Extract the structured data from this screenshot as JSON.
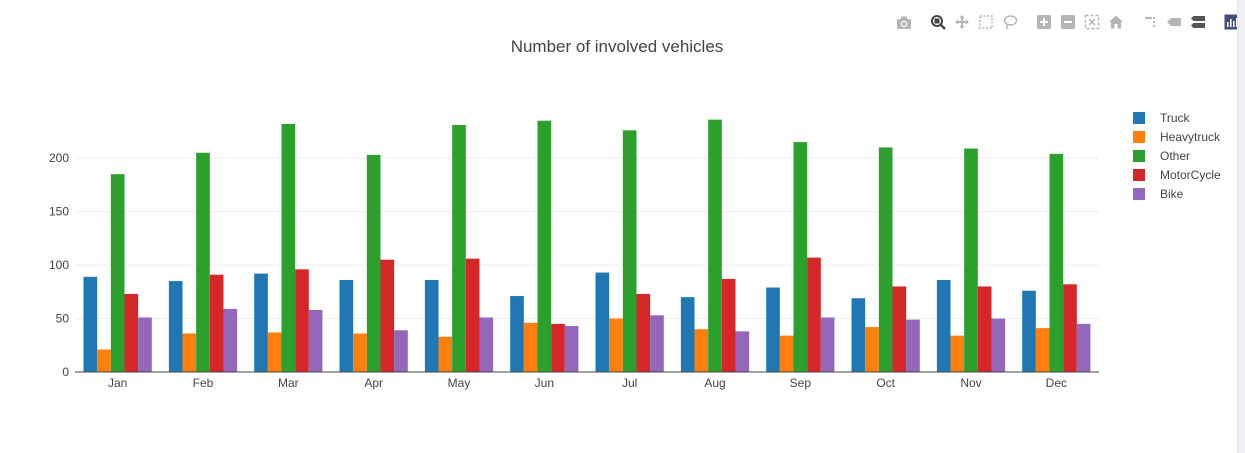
{
  "modebar": {
    "buttons": [
      {
        "name": "camera-icon",
        "title": "Download plot as a png"
      },
      {
        "name": "zoom-icon",
        "title": "Zoom"
      },
      {
        "name": "pan-icon",
        "title": "Pan"
      },
      {
        "name": "box-select-icon",
        "title": "Box Select"
      },
      {
        "name": "lasso-select-icon",
        "title": "Lasso Select"
      },
      {
        "name": "zoom-in-icon",
        "title": "Zoom in"
      },
      {
        "name": "zoom-out-icon",
        "title": "Zoom out"
      },
      {
        "name": "autoscale-icon",
        "title": "Autoscale"
      },
      {
        "name": "home-icon",
        "title": "Reset axes"
      },
      {
        "name": "spike-lines-icon",
        "title": "Toggle Spike Lines"
      },
      {
        "name": "hover-closest-icon",
        "title": "Show closest data on hover"
      },
      {
        "name": "hover-compare-icon",
        "title": "Compare data on hover"
      },
      {
        "name": "plotly-logo-icon",
        "title": "Produced with Plotly"
      }
    ]
  },
  "chart_data": {
    "type": "bar",
    "title": "Number of involved vehicles",
    "xlabel": "",
    "ylabel": "",
    "ylim": [
      0,
      245
    ],
    "yticks": [
      0,
      50,
      100,
      150,
      200
    ],
    "grid": true,
    "legend_position": "top-right",
    "categories": [
      "Jan",
      "Feb",
      "Mar",
      "Apr",
      "May",
      "Jun",
      "Jul",
      "Aug",
      "Sep",
      "Oct",
      "Nov",
      "Dec"
    ],
    "series": [
      {
        "name": "Truck",
        "color": "#1f77b4",
        "values": [
          89,
          85,
          92,
          86,
          86,
          71,
          93,
          70,
          79,
          69,
          86,
          76
        ]
      },
      {
        "name": "Heavytruck",
        "color": "#ff7f0e",
        "values": [
          21,
          36,
          37,
          36,
          33,
          46,
          50,
          40,
          34,
          42,
          34,
          41
        ]
      },
      {
        "name": "Other",
        "color": "#2ca02c",
        "values": [
          185,
          205,
          232,
          203,
          231,
          235,
          226,
          236,
          215,
          210,
          209,
          204
        ]
      },
      {
        "name": "MotorCycle",
        "color": "#d62728",
        "values": [
          73,
          91,
          96,
          105,
          106,
          45,
          73,
          87,
          107,
          80,
          80,
          82
        ]
      },
      {
        "name": "Bike",
        "color": "#9467bd",
        "values": [
          51,
          59,
          58,
          39,
          51,
          43,
          53,
          38,
          51,
          49,
          50,
          45
        ]
      }
    ]
  }
}
